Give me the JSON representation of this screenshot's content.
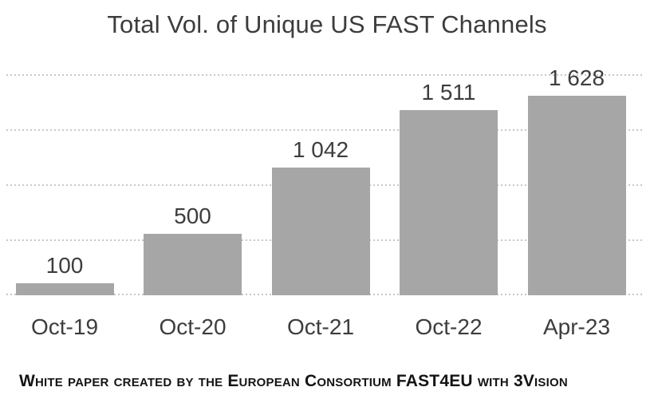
{
  "title": "Total Vol. of Unique US FAST Channels",
  "footer": "White paper created by the European Consortium FAST4EU with 3Vision",
  "colors": {
    "background": "#ffffff",
    "bar_fill": "#a6a6a6",
    "title_text": "#3d3d3d",
    "label_text": "#3d3d3d",
    "gridline": "#c7c7c7",
    "footer_text": "#141414"
  },
  "chart_data": {
    "type": "bar",
    "title": "Total Vol. of Unique US FAST Channels",
    "categories": [
      "Oct-19",
      "Oct-20",
      "Oct-21",
      "Oct-22",
      "Apr-23"
    ],
    "values": [
      100,
      500,
      1042,
      1511,
      1628
    ],
    "value_labels": [
      "100",
      "500",
      "1 042",
      "1 511",
      "1 628"
    ],
    "series": [
      {
        "name": "Unique US FAST channels",
        "values": [
          100,
          500,
          1042,
          1511,
          1628
        ]
      }
    ],
    "xlabel": "",
    "ylabel": "",
    "ylim": [
      0,
      1800
    ],
    "gridline_interval": 450,
    "grid": "horizontal-dotted",
    "y_axis_labels_visible": false,
    "legend": "none",
    "bar_color": "#a6a6a6"
  }
}
